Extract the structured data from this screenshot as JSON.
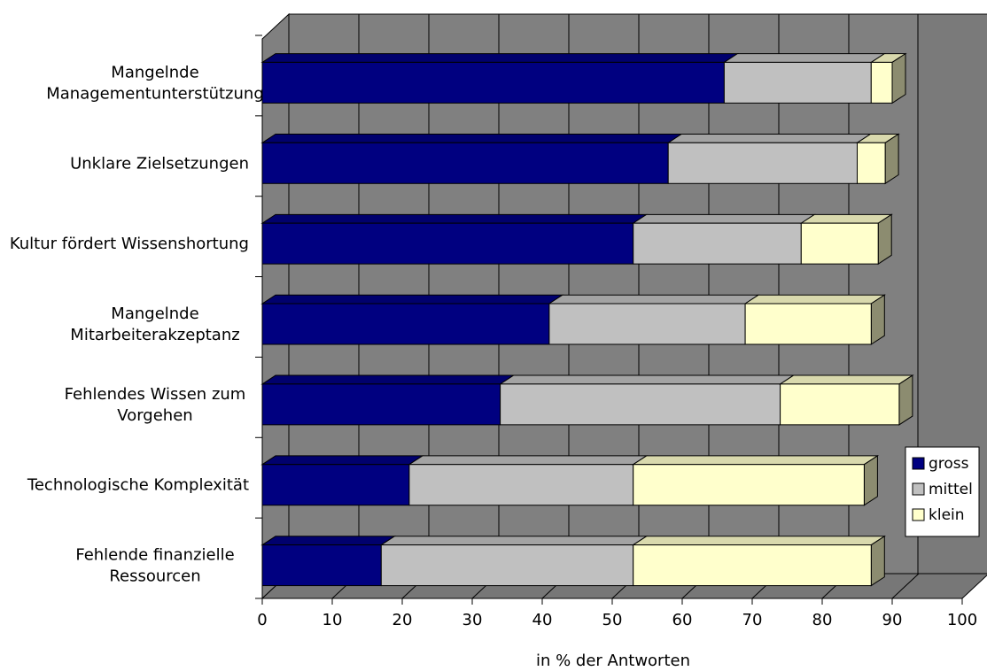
{
  "chart_data": {
    "type": "bar",
    "orientation": "horizontal",
    "stacked": true,
    "style": "3d",
    "xlabel": "in % der Antworten",
    "xlim": [
      0,
      100
    ],
    "xticks": [
      0,
      10,
      20,
      30,
      40,
      50,
      60,
      70,
      80,
      90,
      100
    ],
    "grid": true,
    "legend_position": "right",
    "categories": [
      [
        "Mangelnde",
        "Managementunterstützung"
      ],
      [
        "Unklare Zielsetzungen"
      ],
      [
        "Kultur fördert Wissenshortung"
      ],
      [
        "Mangelnde",
        "Mitarbeiterakzeptanz"
      ],
      [
        "Fehlendes Wissen zum",
        "Vorgehen"
      ],
      [
        "Technologische Komplexität"
      ],
      [
        "Fehlende finanzielle",
        "Ressourcen"
      ]
    ],
    "series": [
      {
        "name": "gross",
        "color": "#000080",
        "values": [
          66,
          58,
          53,
          41,
          34,
          21,
          17
        ]
      },
      {
        "name": "mittel",
        "color": "#c0c0c0",
        "values": [
          21,
          27,
          24,
          28,
          40,
          32,
          36
        ]
      },
      {
        "name": "klein",
        "color": "#ffffcc",
        "values": [
          3,
          4,
          11,
          18,
          17,
          33,
          34
        ]
      }
    ],
    "colors": {
      "wall": "#808080",
      "wall_right": "#7a7a7a",
      "floor": "#777777",
      "grid": "#000000"
    }
  }
}
